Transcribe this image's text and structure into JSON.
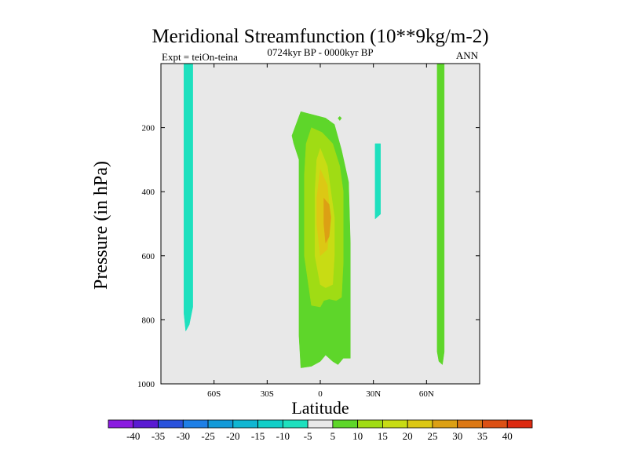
{
  "chart_data": {
    "type": "heatmap",
    "title": "Meridional Streamfunction (10**9kg/m-2)",
    "subtitle": "0724kyr BP - 0000kyr BP",
    "left_label": "Expt = teiOn-teina",
    "right_label": "ANN",
    "xlabel": "Latitude",
    "ylabel": "Pressure (in hPa)",
    "xlim": [
      -90,
      90
    ],
    "ylim": [
      1000,
      0
    ],
    "x_ticks": [
      {
        "value": -60,
        "label": "60S"
      },
      {
        "value": -30,
        "label": "30S"
      },
      {
        "value": 0,
        "label": "0"
      },
      {
        "value": 30,
        "label": "30N"
      },
      {
        "value": 60,
        "label": "60N"
      }
    ],
    "y_ticks": [
      {
        "value": 200,
        "label": "200"
      },
      {
        "value": 400,
        "label": "400"
      },
      {
        "value": 600,
        "label": "600"
      },
      {
        "value": 800,
        "label": "800"
      },
      {
        "value": 1000,
        "label": "1000"
      }
    ],
    "background_color": "#e8e8e8",
    "colorbar": {
      "levels": [
        "-40",
        "-35",
        "-30",
        "-25",
        "-20",
        "-15",
        "-10",
        "-5",
        "5",
        "10",
        "15",
        "20",
        "25",
        "30",
        "35",
        "40"
      ],
      "colors": [
        "#8a1ae0",
        "#5a1ad2",
        "#2a52dc",
        "#1e7fe6",
        "#139ad8",
        "#10b6d2",
        "#10cfc8",
        "#1ee0be",
        "#e8e8e8",
        "#5ed62a",
        "#a0dc14",
        "#c8dc14",
        "#dcc814",
        "#dca014",
        "#dc7814",
        "#dc5014",
        "#dc2a10"
      ]
    },
    "regions": [
      {
        "name": "antarctic-negative-cell",
        "value": -7.5,
        "color": "#1ee0be",
        "points": [
          [
            -77,
            0
          ],
          [
            -72,
            0
          ],
          [
            -72,
            760
          ],
          [
            -74,
            815
          ],
          [
            -76,
            835
          ],
          [
            -77,
            780
          ]
        ]
      },
      {
        "name": "arctic-positive-cell",
        "value": 7.5,
        "color": "#5ed62a",
        "points": [
          [
            66,
            0
          ],
          [
            70,
            0
          ],
          [
            70,
            900
          ],
          [
            69,
            940
          ],
          [
            67,
            930
          ],
          [
            66,
            900
          ]
        ]
      },
      {
        "name": "northern-negative-cell",
        "value": -7.5,
        "color": "#1ee0be",
        "points": [
          [
            31,
            250
          ],
          [
            34,
            250
          ],
          [
            34,
            470
          ],
          [
            31,
            485
          ]
        ]
      },
      {
        "name": "tropical-cell-outer",
        "value": 7.5,
        "color": "#5ed62a",
        "points": [
          [
            -11,
            150
          ],
          [
            -4,
            160
          ],
          [
            3,
            170
          ],
          [
            8,
            190
          ],
          [
            12,
            270
          ],
          [
            16,
            370
          ],
          [
            17,
            560
          ],
          [
            17,
            920
          ],
          [
            13,
            920
          ],
          [
            10,
            940
          ],
          [
            7,
            930
          ],
          [
            3,
            910
          ],
          [
            0,
            930
          ],
          [
            -5,
            945
          ],
          [
            -11,
            950
          ],
          [
            -12,
            850
          ],
          [
            -12,
            600
          ],
          [
            -12,
            300
          ],
          [
            -15,
            250
          ],
          [
            -16,
            225
          ]
        ]
      },
      {
        "name": "tropical-cell-speck",
        "value": 7.5,
        "color": "#5ed62a",
        "points": [
          [
            11,
            165
          ],
          [
            12,
            170
          ],
          [
            11,
            178
          ],
          [
            10,
            170
          ]
        ]
      },
      {
        "name": "tropical-cell-middle",
        "value": 12.5,
        "color": "#a0dc14",
        "points": [
          [
            -5,
            200
          ],
          [
            1,
            215
          ],
          [
            7,
            250
          ],
          [
            11,
            320
          ],
          [
            13,
            400
          ],
          [
            13,
            620
          ],
          [
            12,
            730
          ],
          [
            9,
            740
          ],
          [
            5,
            735
          ],
          [
            2,
            740
          ],
          [
            0,
            760
          ],
          [
            -5,
            755
          ],
          [
            -9,
            600
          ],
          [
            -9,
            350
          ],
          [
            -8,
            250
          ]
        ]
      },
      {
        "name": "tropical-cell-inner",
        "value": 17.5,
        "color": "#c8dc14",
        "points": [
          [
            0,
            265
          ],
          [
            4,
            320
          ],
          [
            6,
            400
          ],
          [
            8,
            480
          ],
          [
            8,
            600
          ],
          [
            7,
            690
          ],
          [
            3,
            700
          ],
          [
            0,
            690
          ],
          [
            -3,
            600
          ],
          [
            -3,
            400
          ],
          [
            -2,
            300
          ]
        ]
      },
      {
        "name": "tropical-cell-core",
        "value": 22.5,
        "color": "#dcc814",
        "points": [
          [
            0,
            330
          ],
          [
            4,
            380
          ],
          [
            5,
            440
          ],
          [
            5,
            520
          ],
          [
            4,
            580
          ],
          [
            0,
            600
          ],
          [
            -2,
            500
          ],
          [
            -2,
            420
          ]
        ]
      },
      {
        "name": "tropical-cell-max",
        "value": 27.5,
        "color": "#dca014",
        "points": [
          [
            2,
            420
          ],
          [
            5,
            440
          ],
          [
            6,
            480
          ],
          [
            5,
            540
          ],
          [
            3,
            560
          ],
          [
            2,
            500
          ]
        ]
      }
    ]
  }
}
